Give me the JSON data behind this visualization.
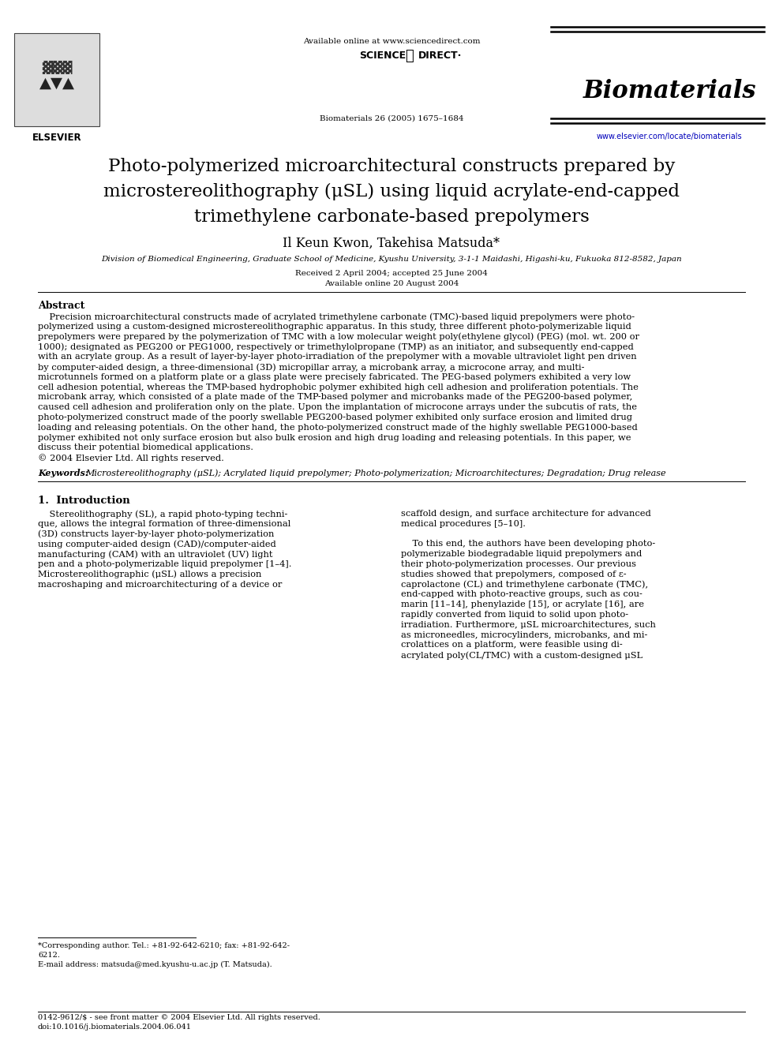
{
  "bg_color": "#ffffff",
  "available_online": "Available online at www.sciencedirect.com",
  "journal_cite": "Biomaterials 26 (2005) 1675–1684",
  "journal_name": "Biomaterials",
  "journal_url": "www.elsevier.com/locate/biomaterials",
  "elsevier_text": "ELSEVIER",
  "title_line1": "Photo-polymerized microarchitectural constructs prepared by",
  "title_line2": "microstereolithography (μSL) using liquid acrylate-end-capped",
  "title_line3": "trimethylene carbonate-based prepolymers",
  "authors": "Il Keun Kwon, Takehisa Matsuda*",
  "affiliation": "Division of Biomedical Engineering, Graduate School of Medicine, Kyushu University, 3-1-1 Maidashi, Higashi-ku, Fukuoka 812-8582, Japan",
  "date1": "Received 2 April 2004; accepted 25 June 2004",
  "date2": "Available online 20 August 2004",
  "abstract_heading": "Abstract",
  "abstract_lines": [
    "    Precision microarchitectural constructs made of acrylated trimethylene carbonate (TMC)-based liquid prepolymers were photo-",
    "polymerized using a custom-designed microstereolithographic apparatus. In this study, three different photo-polymerizable liquid",
    "prepolymers were prepared by the polymerization of TMC with a low molecular weight poly(ethylene glycol) (PEG) (mol. wt. 200 or",
    "1000); designated as PEG200 or PEG1000, respectively or trimethylolpropane (TMP) as an initiator, and subsequently end-capped",
    "with an acrylate group. As a result of layer-by-layer photo-irradiation of the prepolymer with a movable ultraviolet light pen driven",
    "by computer-aided design, a three-dimensional (3D) micropillar array, a microbank array, a microcone array, and multi-",
    "microtunnels formed on a platform plate or a glass plate were precisely fabricated. The PEG-based polymers exhibited a very low",
    "cell adhesion potential, whereas the TMP-based hydrophobic polymer exhibited high cell adhesion and proliferation potentials. The",
    "microbank array, which consisted of a plate made of the TMP-based polymer and microbanks made of the PEG200-based polymer,",
    "caused cell adhesion and proliferation only on the plate. Upon the implantation of microcone arrays under the subcutis of rats, the",
    "photo-polymerized construct made of the poorly swellable PEG200-based polymer exhibited only surface erosion and limited drug",
    "loading and releasing potentials. On the other hand, the photo-polymerized construct made of the highly swellable PEG1000-based",
    "polymer exhibited not only surface erosion but also bulk erosion and high drug loading and releasing potentials. In this paper, we",
    "discuss their potential biomedical applications.",
    "© 2004 Elsevier Ltd. All rights reserved."
  ],
  "keywords_bold": "Keywords: ",
  "keywords_rest": "Microstereolithography (μSL); Acrylated liquid prepolymer; Photo-polymerization; Microarchitectures; Degradation; Drug release",
  "intro_heading": "1.  Introduction",
  "col1_lines": [
    "    Stereolithography (SL), a rapid photo-typing techni-",
    "que, allows the integral formation of three-dimensional",
    "(3D) constructs layer-by-layer photo-polymerization",
    "using computer-aided design (CAD)/computer-aided",
    "manufacturing (CAM) with an ultraviolet (UV) light",
    "pen and a photo-polymerizable liquid prepolymer [1–4].",
    "Microstereolithographic (μSL) allows a precision",
    "macroshaping and microarchitecturing of a device or"
  ],
  "col2_lines": [
    "scaffold design, and surface architecture for advanced",
    "medical procedures [5–10].",
    "",
    "    To this end, the authors have been developing photo-",
    "polymerizable biodegradable liquid prepolymers and",
    "their photo-polymerization processes. Our previous",
    "studies showed that prepolymers, composed of ε-",
    "caprolactone (CL) and trimethylene carbonate (TMC),",
    "end-capped with photo-reactive groups, such as cou-",
    "marin [11–14], phenylazide [15], or acrylate [16], are",
    "rapidly converted from liquid to solid upon photo-",
    "irradiation. Furthermore, μSL microarchitectures, such",
    "as microneedles, microcylinders, microbanks, and mi-",
    "crolattices on a platform, were feasible using di-",
    "acrylated poly(CL/TMC) with a custom-designed μSL"
  ],
  "footnote1a": "*Corresponding author. Tel.: +81-92-642-6210; fax: +81-92-642-",
  "footnote1b": "6212.",
  "footnote2": "E-mail address: matsuda@med.kyushu-u.ac.jp (T. Matsuda).",
  "bottom1": "0142-9612/$ - see front matter © 2004 Elsevier Ltd. All rights reserved.",
  "bottom2": "doi:10.1016/j.biomaterials.2004.06.041"
}
